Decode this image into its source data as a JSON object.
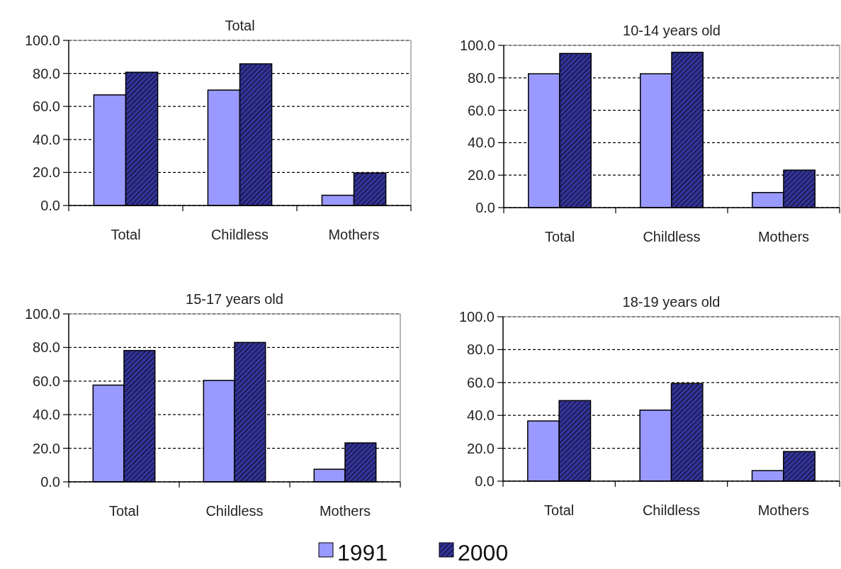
{
  "chart_data": [
    {
      "type": "bar",
      "title": "Total",
      "categories": [
        "Total",
        "Childless",
        "Mothers"
      ],
      "series": [
        {
          "color": "#9999ff",
          "values": [
            67.0,
            69.9,
            6.2
          ]
        },
        {
          "color": "#333399",
          "values": [
            80.7,
            85.8,
            19.7
          ]
        }
      ],
      "ylim": [
        0,
        100
      ],
      "yticks": [
        {
          "value": 0,
          "label": "0.0"
        },
        {
          "value": 20,
          "label": "20.0"
        },
        {
          "value": 40,
          "label": "40.0"
        },
        {
          "value": 60,
          "label": "60.0"
        },
        {
          "value": 80,
          "label": "80.0"
        },
        {
          "value": 100,
          "label": "100.0"
        }
      ],
      "grid": "y"
    },
    {
      "type": "bar",
      "title": "10-14 years old",
      "categories": [
        "Total",
        "Childless",
        "Mothers"
      ],
      "series": [
        {
          "color": "#9999ff",
          "values": [
            82.5,
            82.5,
            9.3
          ]
        },
        {
          "color": "#333399",
          "values": [
            95.0,
            95.7,
            23.1
          ]
        }
      ],
      "ylim": [
        0,
        100
      ],
      "yticks": [
        {
          "value": 0,
          "label": "0.0"
        },
        {
          "value": 20,
          "label": "20.0"
        },
        {
          "value": 40,
          "label": "40.0"
        },
        {
          "value": 60,
          "label": "60.0"
        },
        {
          "value": 80,
          "label": "80.0"
        },
        {
          "value": 100,
          "label": "100.0"
        }
      ],
      "grid": "y"
    },
    {
      "type": "bar",
      "title": "15-17 years old",
      "categories": [
        "Total",
        "Childless",
        "Mothers"
      ],
      "series": [
        {
          "color": "#9999ff",
          "values": [
            57.6,
            60.4,
            7.5
          ]
        },
        {
          "color": "#333399",
          "values": [
            78.2,
            83.0,
            23.2
          ]
        }
      ],
      "ylim": [
        0,
        100
      ],
      "yticks": [
        {
          "value": 0,
          "label": "0.0"
        },
        {
          "value": 20,
          "label": "20.0"
        },
        {
          "value": 40,
          "label": "40.0"
        },
        {
          "value": 60,
          "label": "60.0"
        },
        {
          "value": 80,
          "label": "80.0"
        },
        {
          "value": 100,
          "label": "100.0"
        }
      ],
      "grid": "y"
    },
    {
      "type": "bar",
      "title": "18-19 years old",
      "categories": [
        "Total",
        "Childless",
        "Mothers"
      ],
      "series": [
        {
          "name": "1991",
          "color": "#9999ff",
          "values": [
            36.6,
            43.2,
            6.4
          ]
        },
        {
          "name": "2000",
          "color": "#333399",
          "values": [
            49.0,
            59.4,
            18.0
          ]
        }
      ],
      "ylim": [
        0,
        100
      ],
      "yticks": [
        {
          "value": 0,
          "label": "0.0"
        },
        {
          "value": 20,
          "label": "20.0"
        },
        {
          "value": 40,
          "label": "40.0"
        },
        {
          "value": 60,
          "label": "60.0"
        },
        {
          "value": 80,
          "label": "80.0"
        },
        {
          "value": 100,
          "label": "100.0"
        }
      ],
      "grid": "y",
      "legend": "bottom"
    }
  ]
}
